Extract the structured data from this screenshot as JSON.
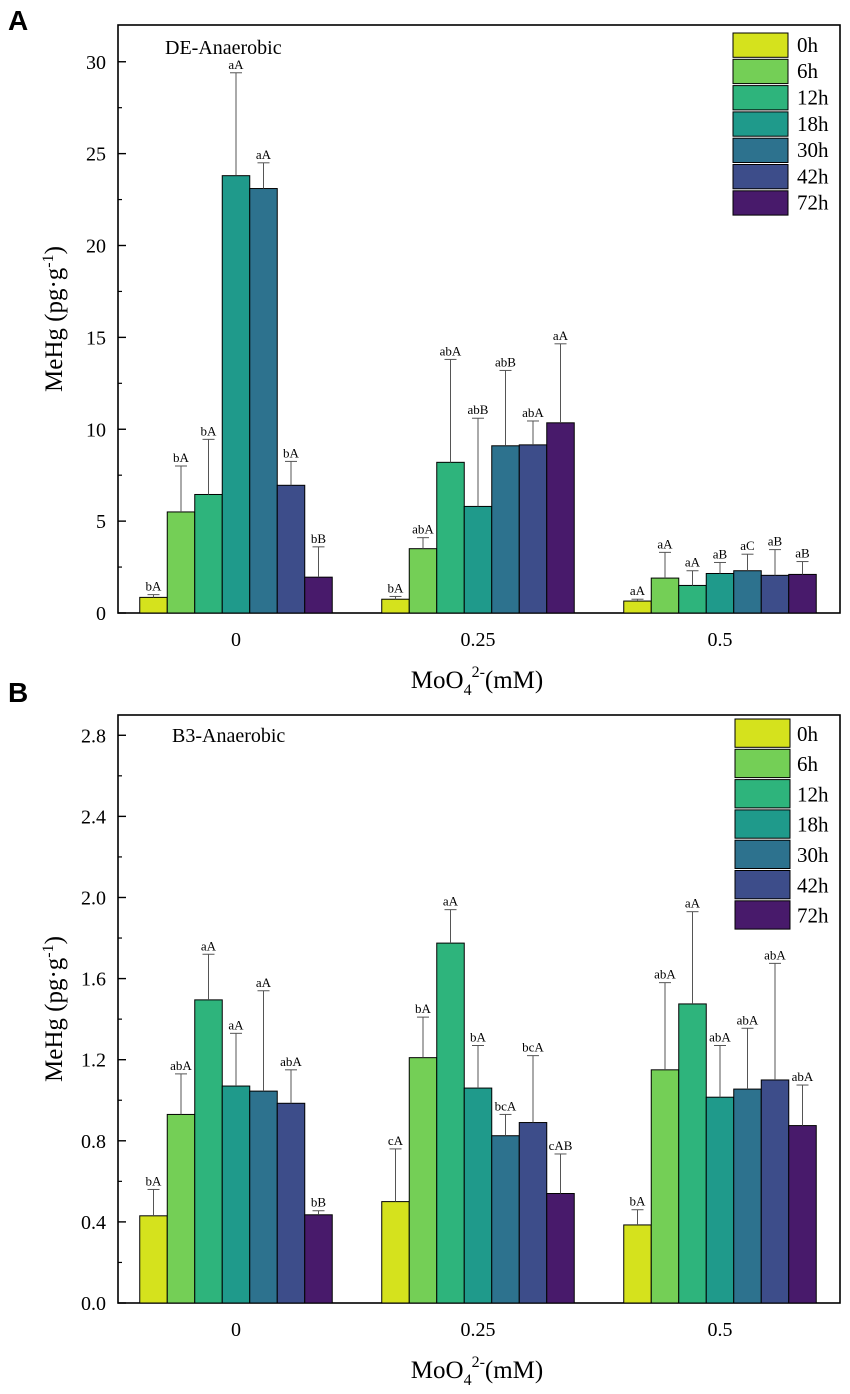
{
  "colors": {
    "0h": "#d5e21d",
    "6h": "#74cf56",
    "12h": "#2eb47c",
    "18h": "#1f9a8b",
    "30h": "#2d728e",
    "42h": "#3d4d8a",
    "72h": "#481a6b"
  },
  "chart_data": [
    {
      "type": "bar",
      "panel_letter": "A",
      "title": "DE-Anaerobic",
      "ylabel": "MeHg (pg·g⁻¹)",
      "ylabel_main": "MeHg (pg·g",
      "ylabel_sup": "-1",
      "ylabel_end": ")",
      "xlabel": "MoO₄²⁻(mM)",
      "xlabel_base": "MoO",
      "xlabel_sub": "4",
      "xlabel_sup": "2-",
      "xlabel_end": "(mM)",
      "categories": [
        "0",
        "0.25",
        "0.5"
      ],
      "ylim": [
        0,
        32
      ],
      "yticks": [
        0,
        5,
        10,
        15,
        20,
        25,
        30
      ],
      "ytick_labels": [
        "0",
        "5",
        "10",
        "15",
        "20",
        "25",
        "30"
      ],
      "legend": [
        "0h",
        "6h",
        "12h",
        "18h",
        "30h",
        "42h",
        "72h"
      ],
      "series": [
        {
          "name": "0h",
          "values": [
            0.85,
            0.75,
            0.65
          ],
          "errors": [
            0.15,
            0.15,
            0.1
          ],
          "labels": [
            "bA",
            "bA",
            "aA"
          ]
        },
        {
          "name": "6h",
          "values": [
            5.5,
            3.5,
            1.9
          ],
          "errors": [
            2.5,
            0.6,
            1.4
          ],
          "labels": [
            "bA",
            "abA",
            "aA"
          ]
        },
        {
          "name": "12h",
          "values": [
            6.45,
            8.2,
            1.5
          ],
          "errors": [
            3.0,
            5.6,
            0.8
          ],
          "labels": [
            "bA",
            "abA",
            "aA"
          ]
        },
        {
          "name": "18h",
          "values": [
            23.8,
            5.8,
            2.15
          ],
          "errors": [
            5.6,
            4.8,
            0.6
          ],
          "labels": [
            "aA",
            "abB",
            "aB"
          ]
        },
        {
          "name": "30h",
          "values": [
            23.1,
            9.1,
            2.3
          ],
          "errors": [
            1.4,
            4.1,
            0.9
          ],
          "labels": [
            "aA",
            "abB",
            "aC"
          ]
        },
        {
          "name": "42h",
          "values": [
            6.95,
            9.15,
            2.05
          ],
          "errors": [
            1.3,
            1.3,
            1.4
          ],
          "labels": [
            "bA",
            "abA",
            "aB"
          ]
        },
        {
          "name": "72h",
          "values": [
            1.95,
            10.35,
            2.1
          ],
          "errors": [
            1.65,
            4.3,
            0.7
          ],
          "labels": [
            "bB",
            "aA",
            "aB"
          ]
        }
      ]
    },
    {
      "type": "bar",
      "panel_letter": "B",
      "title": "B3-Anaerobic",
      "ylabel": "MeHg (pg·g⁻¹)",
      "ylabel_main": "MeHg (pg·g",
      "ylabel_sup": "-1",
      "ylabel_end": ")",
      "xlabel": "MoO₄²⁻(mM)",
      "xlabel_base": "MoO",
      "xlabel_sub": "4",
      "xlabel_sup": "2-",
      "xlabel_end": "(mM)",
      "categories": [
        "0",
        "0.25",
        "0.5"
      ],
      "ylim": [
        0,
        2.9
      ],
      "yticks": [
        0,
        0.4,
        0.8,
        1.2,
        1.6,
        2.0,
        2.4,
        2.8
      ],
      "ytick_labels": [
        "0.0",
        "0.4",
        "0.8",
        "1.2",
        "1.6",
        "2.0",
        "2.4",
        "2.8"
      ],
      "legend": [
        "0h",
        "6h",
        "12h",
        "18h",
        "30h",
        "42h",
        "72h"
      ],
      "series": [
        {
          "name": "0h",
          "values": [
            0.43,
            0.5,
            0.385
          ],
          "errors": [
            0.13,
            0.26,
            0.075
          ],
          "labels": [
            "bA",
            "cA",
            "bA"
          ]
        },
        {
          "name": "6h",
          "values": [
            0.93,
            1.21,
            1.15
          ],
          "errors": [
            0.2,
            0.2,
            0.43
          ],
          "labels": [
            "abA",
            "bA",
            "abA"
          ]
        },
        {
          "name": "12h",
          "values": [
            1.495,
            1.775,
            1.475
          ],
          "errors": [
            0.225,
            0.165,
            0.455
          ],
          "labels": [
            "aA",
            "aA",
            "aA"
          ]
        },
        {
          "name": "18h",
          "values": [
            1.07,
            1.06,
            1.015
          ],
          "errors": [
            0.26,
            0.21,
            0.255
          ],
          "labels": [
            "aA",
            "bA",
            "abA"
          ]
        },
        {
          "name": "30h",
          "values": [
            1.045,
            0.825,
            1.055
          ],
          "errors": [
            0.495,
            0.105,
            0.3
          ],
          "labels": [
            "aA",
            "bcA",
            "abA"
          ]
        },
        {
          "name": "42h",
          "values": [
            0.985,
            0.89,
            1.1
          ],
          "errors": [
            0.165,
            0.33,
            0.575
          ],
          "labels": [
            "abA",
            "bcA",
            "abA"
          ]
        },
        {
          "name": "72h",
          "values": [
            0.435,
            0.54,
            0.875
          ],
          "errors": [
            0.02,
            0.195,
            0.2
          ],
          "labels": [
            "bB",
            "cAB",
            "abA"
          ]
        }
      ]
    }
  ]
}
